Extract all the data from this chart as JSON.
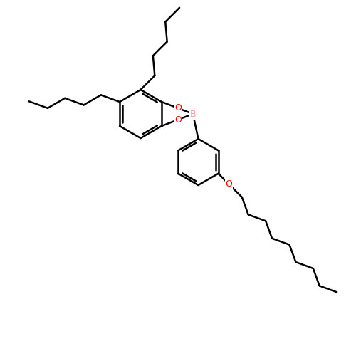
{
  "bg_color": "#ffffff",
  "bond_color": "#000000",
  "O_color": "#ff0000",
  "B_color": "#ff9999",
  "line_width": 1.8,
  "figsize": [
    5.0,
    5.0
  ],
  "dpi": 100,
  "xlim": [
    0,
    10
  ],
  "ylim": [
    0,
    10
  ]
}
